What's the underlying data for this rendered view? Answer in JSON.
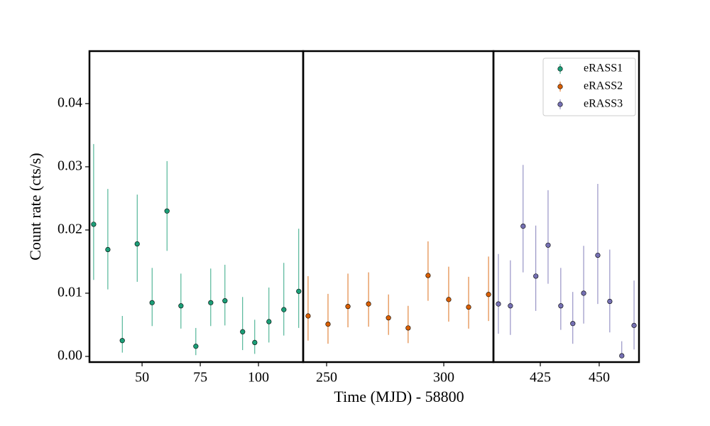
{
  "chart_data": [
    {
      "type": "scatter",
      "ylabel": "Count rate (cts/s)",
      "ylim": [
        -0.0009,
        0.0483
      ],
      "yticks": [
        {
          "value": 0,
          "label": "0.00"
        },
        {
          "value": 0.01,
          "label": "0.01"
        },
        {
          "value": 0.02,
          "label": "0.02"
        },
        {
          "value": 0.03,
          "label": "0.03"
        },
        {
          "value": 0.04,
          "label": "0.04"
        }
      ],
      "xlim": [
        27.4,
        119.2
      ],
      "xticks": [
        50,
        75,
        100
      ],
      "series": [
        {
          "name": "eRASS1",
          "color": "#1b9e77",
          "x": [
            29.2,
            35.3,
            41.5,
            47.9,
            54.3,
            60.7,
            66.7,
            73.1,
            79.5,
            85.6,
            93.2,
            98.4,
            104.5,
            110.9,
            117.3
          ],
          "values": [
            0.0209,
            0.0169,
            0.0025,
            0.0178,
            0.0085,
            0.023,
            0.008,
            0.0016,
            0.0085,
            0.0088,
            0.0039,
            0.0022,
            0.0055,
            0.0074,
            0.0103
          ],
          "lower": [
            0.0121,
            0.0106,
            0.0006,
            0.0118,
            0.0048,
            0.0167,
            0.0044,
            0.0002,
            0.0048,
            0.0049,
            0.001,
            0.0004,
            0.0022,
            0.0033,
            0.0045
          ],
          "upper": [
            0.0336,
            0.0265,
            0.0064,
            0.0256,
            0.014,
            0.0309,
            0.0131,
            0.0045,
            0.0139,
            0.0145,
            0.0094,
            0.0058,
            0.0109,
            0.0148,
            0.0202
          ]
        }
      ]
    },
    {
      "type": "scatter",
      "xlabel": "Time (MJD) - 58800",
      "xlim": [
        240,
        321.2
      ],
      "xticks": [
        250,
        300
      ],
      "series": [
        {
          "name": "eRASS2",
          "color": "#d95f02",
          "x": [
            242.1,
            250.6,
            259.1,
            267.9,
            276.4,
            284.8,
            293.3,
            302.1,
            310.6,
            319.1
          ],
          "values": [
            0.0064,
            0.0051,
            0.0079,
            0.0083,
            0.0061,
            0.0045,
            0.0128,
            0.009,
            0.0078,
            0.0098
          ],
          "lower": [
            0.0025,
            0.002,
            0.0046,
            0.0047,
            0.0034,
            0.0021,
            0.0088,
            0.0055,
            0.0044,
            0.0056
          ],
          "upper": [
            0.0127,
            0.0099,
            0.0131,
            0.0133,
            0.0098,
            0.008,
            0.0182,
            0.0142,
            0.0126,
            0.0158
          ]
        }
      ]
    },
    {
      "type": "scatter",
      "legend": "upper right",
      "xlim": [
        405.1,
        466.9
      ],
      "xticks": [
        425,
        450
      ],
      "series": [
        {
          "name": "eRASS3",
          "color": "#7570b3",
          "x": [
            407.2,
            412.3,
            417.7,
            423.1,
            428.3,
            433.7,
            438.8,
            443.4,
            449.4,
            454.5,
            459.6,
            464.8
          ],
          "values": [
            0.0083,
            0.008,
            0.0206,
            0.0127,
            0.0176,
            0.008,
            0.0052,
            0.01,
            0.016,
            0.0087,
            0.0001,
            0.0049
          ],
          "lower": [
            0.0036,
            0.0034,
            0.0133,
            0.0072,
            0.0115,
            0.0042,
            0.002,
            0.0052,
            0.0083,
            0.0038,
            0,
            0.0011
          ],
          "upper": [
            0.0162,
            0.0152,
            0.0303,
            0.0207,
            0.0263,
            0.014,
            0.0102,
            0.0175,
            0.0273,
            0.0169,
            0.0024,
            0.012
          ]
        }
      ]
    }
  ]
}
